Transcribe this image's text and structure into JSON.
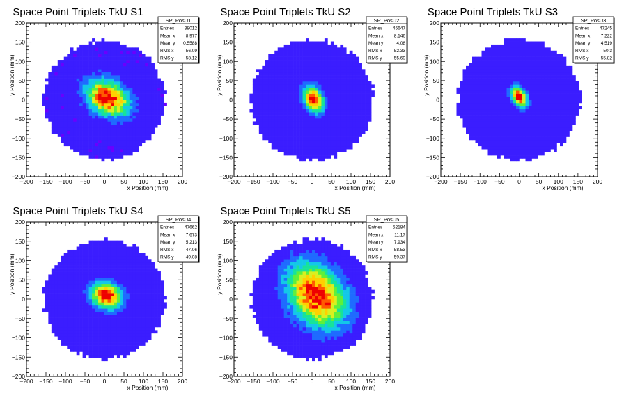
{
  "chart_data": [
    {
      "type": "heatmap",
      "title": "Space Point Triplets TkU S1",
      "xlabel": "x Position (mm)",
      "ylabel": "y Position (mm)",
      "xlim": [
        -200,
        200
      ],
      "ylim": [
        -200,
        200
      ],
      "xticks": [
        -200,
        -150,
        -100,
        -50,
        0,
        50,
        100,
        150,
        200
      ],
      "yticks": [
        -200,
        -150,
        -100,
        -50,
        0,
        50,
        100,
        150,
        200
      ],
      "stats": {
        "name": "SP_PosU1",
        "rows": [
          {
            "label": "Entries",
            "value": "38012"
          },
          {
            "label": "Mean x",
            "value": "8.977"
          },
          {
            "label": "Mean y",
            "value": "0.5588"
          },
          {
            "label": "RMS x",
            "value": "56.09"
          },
          {
            "label": "RMS y",
            "value": "58.12"
          }
        ]
      },
      "distribution": {
        "cx": 8,
        "cy": 5,
        "sx": 35,
        "sy": 30,
        "rho": -0.3,
        "radius": 155,
        "texture": "patchy"
      }
    },
    {
      "type": "heatmap",
      "title": "Space Point Triplets TkU S2",
      "xlabel": "x Position (mm)",
      "ylabel": "y Position (mm)",
      "xlim": [
        -200,
        200
      ],
      "ylim": [
        -200,
        200
      ],
      "xticks": [
        -200,
        -150,
        -100,
        -50,
        0,
        50,
        100,
        150,
        200
      ],
      "yticks": [
        -200,
        -150,
        -100,
        -50,
        0,
        50,
        100,
        150,
        200
      ],
      "stats": {
        "name": "SP_PosU2",
        "rows": [
          {
            "label": "Entries",
            "value": "45647"
          },
          {
            "label": "Mean x",
            "value": "8.146"
          },
          {
            "label": "Mean y",
            "value": "4.08"
          },
          {
            "label": "RMS x",
            "value": "52.33"
          },
          {
            "label": "RMS y",
            "value": "55.69"
          }
        ]
      },
      "distribution": {
        "cx": 3,
        "cy": 2,
        "sx": 17,
        "sy": 22,
        "rho": -0.3,
        "radius": 157,
        "texture": "smooth"
      }
    },
    {
      "type": "heatmap",
      "title": "Space Point Triplets TkU S3",
      "xlabel": "x Position (mm)",
      "ylabel": "y Position (mm)",
      "xlim": [
        -200,
        200
      ],
      "ylim": [
        -200,
        200
      ],
      "xticks": [
        -200,
        -150,
        -100,
        -50,
        0,
        50,
        100,
        150,
        200
      ],
      "yticks": [
        -200,
        -150,
        -100,
        -50,
        0,
        50,
        100,
        150,
        200
      ],
      "stats": {
        "name": "SP_PosU3",
        "rows": [
          {
            "label": "Entries",
            "value": "47245"
          },
          {
            "label": "Mean x",
            "value": "7.222"
          },
          {
            "label": "Mean y",
            "value": "4.519"
          },
          {
            "label": "RMS x",
            "value": "50.3"
          },
          {
            "label": "RMS y",
            "value": "55.82"
          }
        ]
      },
      "distribution": {
        "cx": 0,
        "cy": 8,
        "sx": 13,
        "sy": 17,
        "rho": -0.35,
        "radius": 157,
        "texture": "smooth"
      }
    },
    {
      "type": "heatmap",
      "title": "Space Point Triplets TkU S4",
      "xlabel": "x Position (mm)",
      "ylabel": "y Position (mm)",
      "xlim": [
        -200,
        200
      ],
      "ylim": [
        -200,
        200
      ],
      "xticks": [
        -200,
        -150,
        -100,
        -50,
        0,
        50,
        100,
        150,
        200
      ],
      "yticks": [
        -200,
        -150,
        -100,
        -50,
        0,
        50,
        100,
        150,
        200
      ],
      "stats": {
        "name": "SP_PosU4",
        "rows": [
          {
            "label": "Entries",
            "value": "47662"
          },
          {
            "label": "Mean x",
            "value": "7.673"
          },
          {
            "label": "Mean y",
            "value": "5.213"
          },
          {
            "label": "RMS x",
            "value": "47.06"
          },
          {
            "label": "RMS y",
            "value": "49.08"
          }
        ]
      },
      "distribution": {
        "cx": 5,
        "cy": 10,
        "sx": 26,
        "sy": 22,
        "rho": -0.15,
        "radius": 155,
        "texture": "smooth"
      }
    },
    {
      "type": "heatmap",
      "title": "Space Point Triplets TkU S5",
      "xlabel": "x Position (mm)",
      "ylabel": "y Position (mm)",
      "xlim": [
        -200,
        200
      ],
      "ylim": [
        -200,
        200
      ],
      "xticks": [
        -200,
        -150,
        -100,
        -50,
        0,
        50,
        100,
        150,
        200
      ],
      "yticks": [
        -200,
        -150,
        -100,
        -50,
        0,
        50,
        100,
        150,
        200
      ],
      "stats": {
        "name": "SP_PosU5",
        "rows": [
          {
            "label": "Entries",
            "value": "52184"
          },
          {
            "label": "Mean x",
            "value": "11.17"
          },
          {
            "label": "Mean y",
            "value": "7.934"
          },
          {
            "label": "RMS x",
            "value": "58.53"
          },
          {
            "label": "RMS y",
            "value": "59.37"
          }
        ]
      },
      "distribution": {
        "cx": 12,
        "cy": 10,
        "sx": 48,
        "sy": 52,
        "rho": -0.3,
        "radius": 155,
        "texture": "grainy"
      }
    }
  ],
  "colors": {
    "background": "#ffffff",
    "frame": "#000000",
    "palette": [
      "#6a00ff",
      "#3b1dff",
      "#1f6bff",
      "#13c8e8",
      "#17e39a",
      "#5ff03a",
      "#d9f020",
      "#ffd000",
      "#ff5a00",
      "#ee0000"
    ]
  }
}
